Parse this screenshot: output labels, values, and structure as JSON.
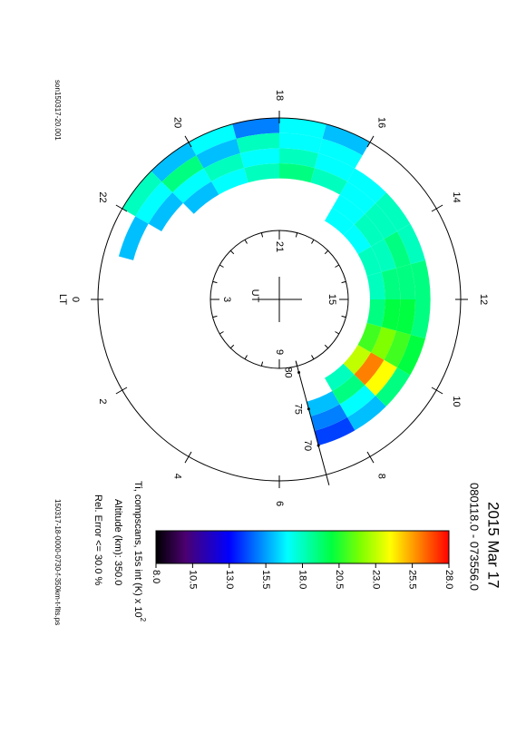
{
  "chart_data": {
    "type": "polar-dial",
    "title": "2015 Mar 17",
    "subtitle": "080118.0 - 073556.0",
    "colorbar_label": "Ti, compscans, 15s int (K) x 10",
    "colorbar_label_sup": "2",
    "altitude": "Altitude (km): 350.0",
    "error": "Rel. Error <= 30.0 %",
    "file_left": "son150317-20.001",
    "file_bottom": "150317-18-0000-0730-f-350km-t-fits.ps",
    "lt_label": "LT",
    "ut_label": "UT",
    "lt_ticks": [
      0,
      2,
      4,
      6,
      8,
      10,
      12,
      14,
      16,
      18,
      20,
      22
    ],
    "ut_ticks": [
      3,
      9,
      15,
      21
    ],
    "ut_offset_hours": -3,
    "latlim": [
      90,
      66
    ],
    "lat_ticks": [
      70,
      75,
      80
    ],
    "lt_edges": [
      7,
      8,
      9,
      10,
      11,
      12,
      13,
      14,
      15,
      16,
      17,
      18,
      19,
      20,
      21,
      22,
      23
    ],
    "lat_edges": [
      66,
      68,
      70,
      72,
      74,
      76,
      78
    ],
    "values": [
      [
        null,
        null,
        null,
        null,
        null,
        null,
        null,
        null,
        null,
        16,
        17,
        15,
        17,
        16,
        18,
        null
      ],
      [
        null,
        null,
        null,
        null,
        null,
        null,
        null,
        null,
        null,
        17,
        17,
        18,
        16,
        19,
        17,
        16
      ],
      [
        14,
        16,
        19,
        20,
        19,
        19,
        18,
        18,
        17,
        17,
        18,
        17,
        18,
        17,
        16,
        null
      ],
      [
        15,
        17,
        24,
        21,
        20,
        19,
        19,
        18,
        17,
        18,
        19,
        18,
        17,
        16,
        null,
        null
      ],
      [
        16,
        19,
        26,
        22,
        20,
        19,
        18,
        18,
        17,
        null,
        null,
        null,
        null,
        null,
        null,
        null
      ],
      [
        null,
        18,
        23,
        21,
        19,
        18,
        18,
        17,
        17,
        null,
        null,
        null,
        null,
        null,
        null,
        null
      ]
    ],
    "clim": [
      8,
      28
    ],
    "cticks": [
      {
        "value": 8,
        "label": "8.0"
      },
      {
        "value": 10.5,
        "label": "10.5"
      },
      {
        "value": 13,
        "label": "13.0"
      },
      {
        "value": 15.5,
        "label": "15.5"
      },
      {
        "value": 18,
        "label": "18.0"
      },
      {
        "value": 20.5,
        "label": "20.5"
      },
      {
        "value": 23,
        "label": "23.0"
      },
      {
        "value": 25.5,
        "label": "25.5"
      },
      {
        "value": 28,
        "label": "28.0"
      }
    ]
  }
}
